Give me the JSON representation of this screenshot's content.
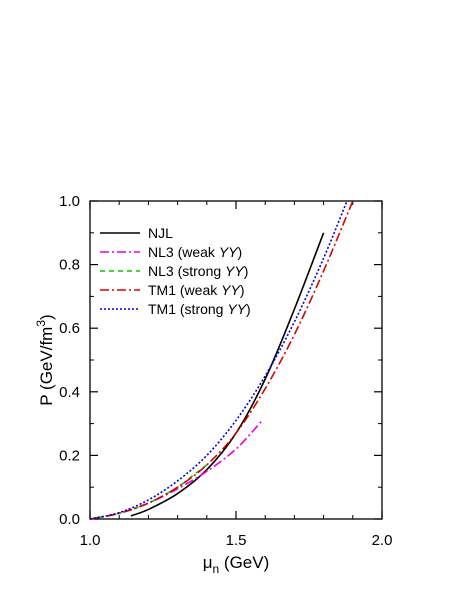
{
  "chart_data": {
    "type": "line",
    "xlabel": {
      "main": "μ",
      "sub": "n",
      "rest": " (GeV)"
    },
    "ylabel": {
      "main": "P (GeV/fm",
      "sup": "3",
      "rest": ")"
    },
    "xlim": [
      1.0,
      2.0
    ],
    "ylim": [
      0.0,
      1.0
    ],
    "xticks": [
      1.0,
      1.5,
      2.0
    ],
    "xtick_labels": [
      "1.0",
      "1.5",
      "2.0"
    ],
    "yticks": [
      0.0,
      0.2,
      0.4,
      0.6,
      0.8,
      1.0
    ],
    "ytick_labels": [
      "0.0",
      "0.2",
      "0.4",
      "0.6",
      "0.8",
      "1.0"
    ],
    "grid": false,
    "legend_position": "top-left",
    "series": [
      {
        "name": "NJL",
        "name_italic": "",
        "name_close": "",
        "color": "#000000",
        "dash": "",
        "x": [
          1.14,
          1.2,
          1.3,
          1.4,
          1.5,
          1.6,
          1.7,
          1.8
        ],
        "y": [
          0.01,
          0.03,
          0.08,
          0.155,
          0.27,
          0.44,
          0.66,
          0.9
        ]
      },
      {
        "name": "NL3 (weak ",
        "name_italic": "YY",
        "name_close": ")",
        "color": "#e600e6",
        "dash": "9,3,2,3",
        "x": [
          1.0,
          1.1,
          1.2,
          1.3,
          1.4,
          1.5,
          1.59
        ],
        "y": [
          0.0,
          0.018,
          0.05,
          0.095,
          0.15,
          0.22,
          0.31
        ]
      },
      {
        "name": "NL3 (strong ",
        "name_italic": "YY",
        "name_close": ")",
        "color": "#00cc00",
        "dash": "5,4",
        "x": [
          1.0,
          1.1,
          1.2,
          1.3,
          1.35,
          1.4
        ],
        "y": [
          0.0,
          0.018,
          0.05,
          0.1,
          0.135,
          0.17
        ]
      },
      {
        "name": "TM1 (weak ",
        "name_italic": "YY",
        "name_close": ")",
        "color": "#dd0000",
        "dash": "9,3,2,3",
        "x": [
          1.0,
          1.1,
          1.2,
          1.3,
          1.4,
          1.5,
          1.6,
          1.7,
          1.8,
          1.9
        ],
        "y": [
          0.0,
          0.018,
          0.05,
          0.1,
          0.17,
          0.27,
          0.41,
          0.58,
          0.78,
          1.0
        ]
      },
      {
        "name": "TM1 (strong ",
        "name_italic": "YY",
        "name_close": ")",
        "color": "#0000dd",
        "dash": "2,2",
        "x": [
          1.0,
          1.1,
          1.2,
          1.3,
          1.4,
          1.5,
          1.6,
          1.7,
          1.8,
          1.88
        ],
        "y": [
          0.0,
          0.02,
          0.06,
          0.12,
          0.2,
          0.31,
          0.45,
          0.62,
          0.82,
          1.0
        ]
      }
    ]
  }
}
